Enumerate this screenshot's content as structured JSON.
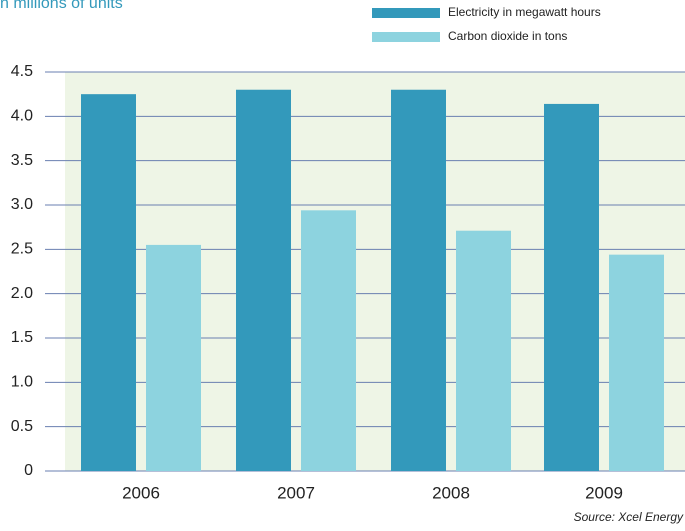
{
  "chart_data": {
    "type": "bar",
    "title": "n millions of units",
    "source": "Source: Xcel Energy",
    "categories": [
      "2006",
      "2007",
      "2008",
      "2009"
    ],
    "series": [
      {
        "name": "Electricity in megawatt hours",
        "color": "#3399bb",
        "values": [
          4.25,
          4.3,
          4.3,
          4.14
        ]
      },
      {
        "name": "Carbon dioxide in tons",
        "color": "#8dd3df",
        "values": [
          2.55,
          2.94,
          2.71,
          2.44
        ]
      }
    ],
    "ylim": [
      0,
      4.5
    ],
    "yticks": [
      0,
      0.5,
      {
        "value": 1,
        "label": "1.0"
      },
      1.5,
      {
        "value": 2,
        "label": "2.0"
      },
      2.5,
      {
        "value": 3,
        "label": "3.0"
      },
      3.5,
      {
        "value": 4,
        "label": "4.0"
      },
      4.5
    ],
    "grid": true
  }
}
